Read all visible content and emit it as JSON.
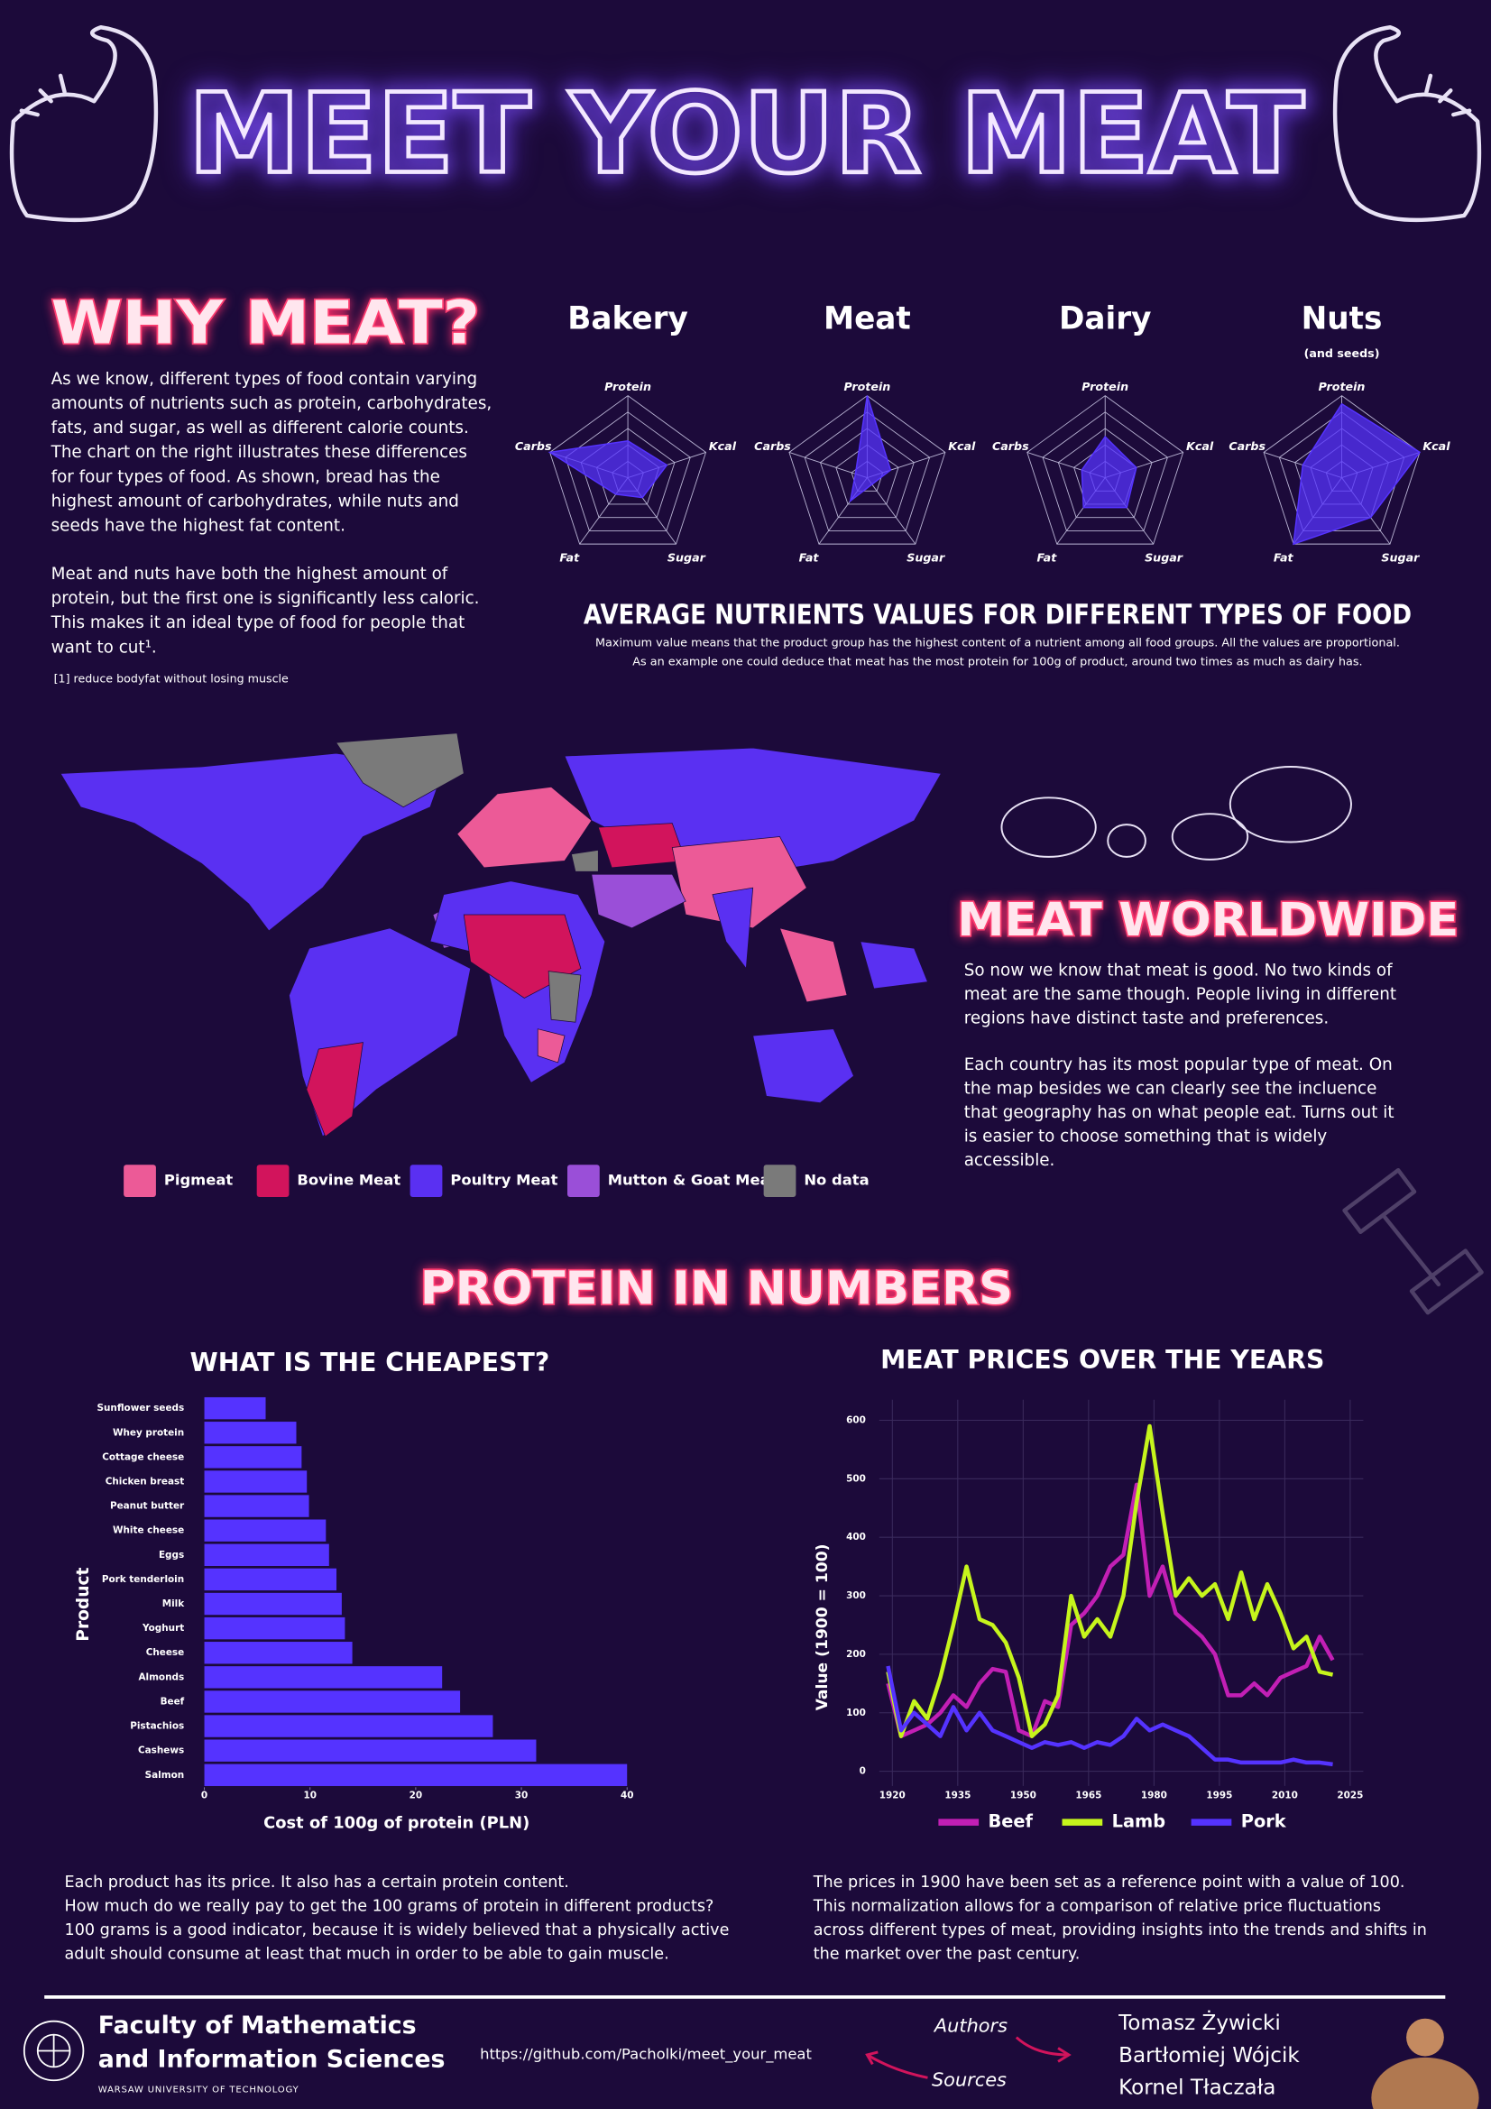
{
  "header": {
    "title": "MEET YOUR MEAT"
  },
  "why_meat": {
    "title": "WHY MEAT?",
    "paragraphs": [
      [
        "As we know, different types of food contain varying",
        "amounts of nutrients such as protein, carbohydrates,",
        "fats, and sugar, as well as different calorie counts.",
        "The chart on the right illustrates these differences",
        "for four types of food. As shown, bread has the",
        "highest amount of carbohydrates, while nuts and",
        "seeds have the highest fat content."
      ],
      [
        "Meat and nuts have both the highest amount of",
        "protein, but the first one is significantly less caloric.",
        "This makes it an ideal type of food for people that",
        "want to cut¹."
      ]
    ],
    "footnote": "[1] reduce bodyfat without losing muscle"
  },
  "nutrients": {
    "title": "AVERAGE NUTRIENTS VALUES FOR DIFFERENT TYPES OF FOOD",
    "notes": [
      "Maximum value means that the product group has the highest content of a nutrient among all food groups. All the values are proportional.",
      "As an example one could deduce that meat has the most protein for 100g of product, around two times as much as dairy has."
    ]
  },
  "chart_data": [
    {
      "type": "radar",
      "title": "Bakery",
      "categories": [
        "Protein",
        "Kcal",
        "Sugar",
        "Fat",
        "Carbs"
      ],
      "values": [
        0.45,
        0.5,
        0.3,
        0.25,
        1.0
      ],
      "color": "#5533ff",
      "ylim": [
        0,
        1
      ]
    },
    {
      "type": "radar",
      "title": "Meat",
      "categories": [
        "Protein",
        "Kcal",
        "Sugar",
        "Fat",
        "Carbs"
      ],
      "values": [
        1.0,
        0.3,
        0.1,
        0.35,
        0.15
      ],
      "color": "#5533ff",
      "ylim": [
        0,
        1
      ]
    },
    {
      "type": "radar",
      "title": "Dairy",
      "categories": [
        "Protein",
        "Kcal",
        "Sugar",
        "Fat",
        "Carbs"
      ],
      "values": [
        0.5,
        0.4,
        0.45,
        0.45,
        0.3
      ],
      "color": "#5533ff",
      "ylim": [
        0,
        1
      ]
    },
    {
      "type": "radar",
      "title": "Nuts",
      "subtitle": "(and seeds)",
      "categories": [
        "Protein",
        "Kcal",
        "Sugar",
        "Fat",
        "Carbs"
      ],
      "values": [
        0.9,
        1.0,
        0.6,
        1.0,
        0.5
      ],
      "color": "#5533ff",
      "ylim": [
        0,
        1
      ]
    },
    {
      "type": "barh",
      "title": "WHAT IS THE CHEAPEST?",
      "x_label": "Cost of 100g of protein (PLN)",
      "y_label": "Product",
      "categories": [
        "Sunflower seeds",
        "Whey protein",
        "Cottage cheese",
        "Chicken breast",
        "Peanut butter",
        "White cheese",
        "Eggs",
        "Pork tenderloin",
        "Milk",
        "Yoghurt",
        "Cheese",
        "Almonds",
        "Beef",
        "Pistachios",
        "Cashews",
        "Salmon"
      ],
      "values": [
        5.8,
        8.7,
        9.2,
        9.7,
        9.9,
        11.5,
        11.8,
        12.5,
        13.0,
        13.3,
        14.0,
        22.5,
        24.2,
        27.3,
        31.4,
        40.0
      ],
      "color": "#5533ff",
      "xlim": [
        0,
        43
      ],
      "xticks": [
        0,
        10,
        20,
        30,
        40
      ]
    },
    {
      "type": "line",
      "title": "MEAT PRICES OVER THE YEARS",
      "y_label": "Value (1900 = 100)",
      "x": [
        1919,
        1922,
        1925,
        1928,
        1931,
        1934,
        1937,
        1940,
        1943,
        1946,
        1949,
        1952,
        1955,
        1958,
        1961,
        1964,
        1967,
        1970,
        1973,
        1976,
        1979,
        1982,
        1985,
        1988,
        1991,
        1994,
        1997,
        2000,
        2003,
        2006,
        2009,
        2012,
        2015,
        2018,
        2021
      ],
      "series": [
        {
          "name": "Beef",
          "color": "#c21fb5",
          "values": [
            150,
            60,
            70,
            80,
            100,
            130,
            110,
            150,
            175,
            170,
            70,
            60,
            120,
            110,
            250,
            270,
            300,
            350,
            370,
            490,
            300,
            350,
            270,
            250,
            230,
            200,
            130,
            130,
            150,
            130,
            160,
            170,
            180,
            230,
            190
          ]
        },
        {
          "name": "Lamb",
          "color": "#c6f51c",
          "values": [
            170,
            60,
            120,
            90,
            160,
            250,
            350,
            260,
            250,
            220,
            160,
            60,
            80,
            130,
            300,
            230,
            260,
            230,
            300,
            460,
            590,
            440,
            300,
            330,
            300,
            320,
            260,
            340,
            260,
            320,
            270,
            210,
            230,
            170,
            165
          ]
        },
        {
          "name": "Pork",
          "color": "#5533ff",
          "values": [
            180,
            70,
            100,
            80,
            60,
            110,
            70,
            100,
            70,
            60,
            50,
            40,
            50,
            45,
            50,
            40,
            50,
            45,
            60,
            90,
            70,
            80,
            70,
            60,
            40,
            20,
            20,
            15,
            15,
            15,
            15,
            20,
            15,
            15,
            12
          ]
        }
      ],
      "xlim": [
        1917,
        2028
      ],
      "xticks": [
        1920,
        1935,
        1950,
        1965,
        1980,
        1995,
        2010,
        2025
      ],
      "ylim": [
        -25,
        635
      ],
      "yticks": [
        0,
        100,
        200,
        300,
        400,
        500,
        600
      ],
      "grid": true
    }
  ],
  "worldwide": {
    "title": "MEAT WORLDWIDE",
    "paragraphs": [
      [
        "So now we know that meat is good. No two kinds of",
        "meat are the same though. People living in different",
        "regions have distinct taste and preferences."
      ],
      [
        "Each country has its most popular type of meat. On",
        "the map besides we can clearly see the incluence",
        "that geography has on what people eat. Turns out it",
        "is easier to choose something that is widely",
        "accessible."
      ]
    ],
    "legend": [
      {
        "name": "Pigmeat",
        "color": "#ec5a97"
      },
      {
        "name": "Bovine Meat",
        "color": "#d2145c"
      },
      {
        "name": "Poultry Meat",
        "color": "#5a30f2"
      },
      {
        "name": "Mutton & Goat Meat",
        "color": "#9a4fd8"
      },
      {
        "name": "No data",
        "color": "#7a7a7a"
      }
    ]
  },
  "protein": {
    "title": "PROTEIN IN NUMBERS",
    "left_text": [
      "Each product has its price. It also has a certain protein content.",
      "How much do we really pay to get the 100 grams of protein in different products?",
      "100 grams is a good indicator, because it is widely believed that a physically active",
      "adult should consume at least that much in order to be able to gain muscle."
    ],
    "right_text": [
      "The prices in 1900 have been set as a reference point with a value of 100.",
      "This normalization allows for a comparison of relative price fluctuations",
      "across different types of meat, providing insights into the trends and shifts in",
      "the market over the past century."
    ]
  },
  "footer": {
    "faculty": [
      "Faculty of Mathematics",
      "and Information Sciences"
    ],
    "university": "WARSAW UNIVERSITY OF TECHNOLOGY",
    "url": "https://github.com/Pacholki/meet_your_meat",
    "authors_label": "Authors",
    "sources_label": "Sources",
    "authors": [
      "Tomasz Żywicki",
      "Bartłomiej Wójcik",
      "Kornel Tłaczała"
    ]
  }
}
